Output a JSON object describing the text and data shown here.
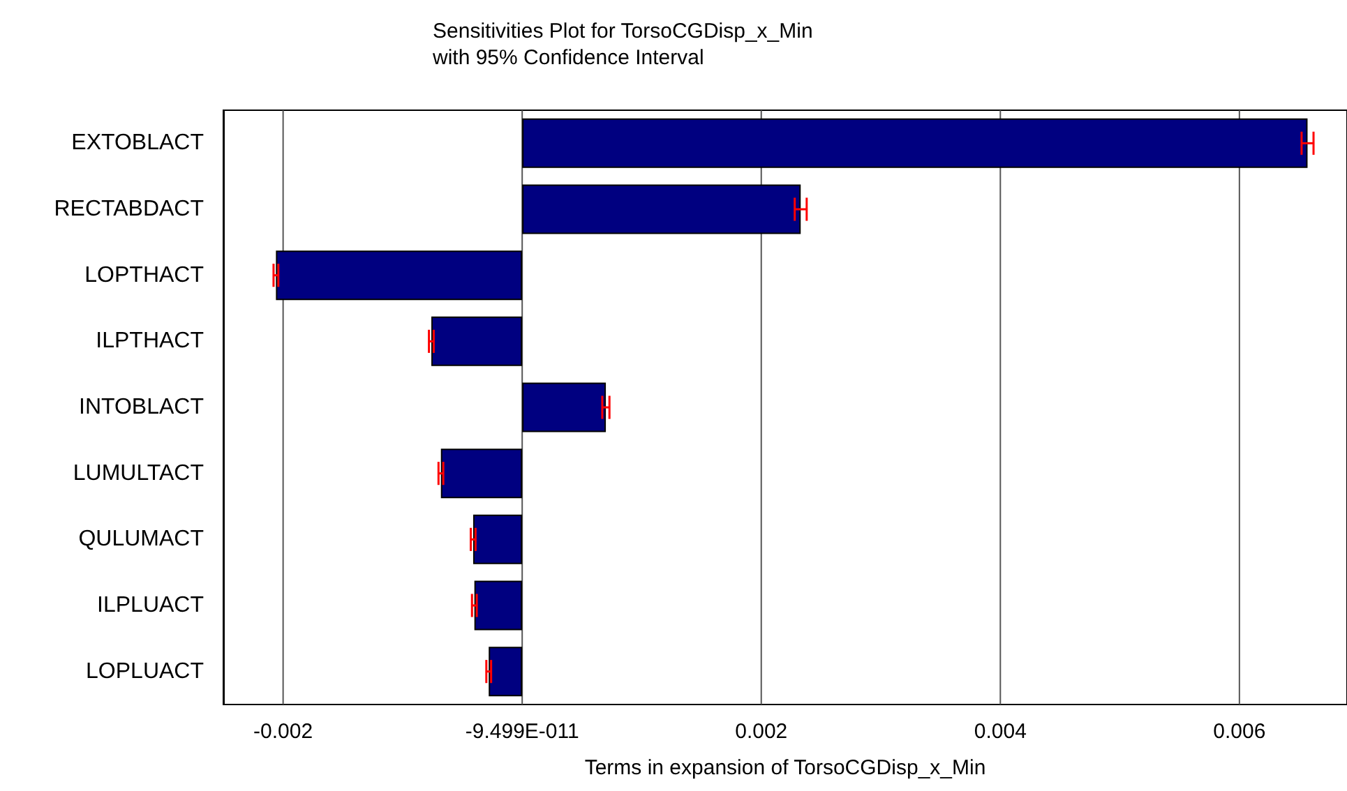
{
  "chart_data": {
    "type": "bar",
    "orientation": "horizontal",
    "title": "Sensitivities Plot for TorsoCGDisp_x_Min",
    "subtitle": "with 95% Confidence Interval",
    "xlabel": "Terms in expansion of TorsoCGDisp_x_Min",
    "categories": [
      "EXTOBLACT",
      "RECTABDACT",
      "LOPTHACT",
      "ILPTHACT",
      "INTOBLACT",
      "LUMULTACT",
      "QULUMACT",
      "ILPLUACT",
      "LOPLUACT"
    ],
    "values": [
      0.00657,
      0.00233,
      -0.00206,
      -0.00076,
      0.0007,
      -0.00068,
      -0.00041,
      -0.0004,
      -0.00028
    ],
    "errors": [
      5e-05,
      5e-05,
      2e-05,
      2e-05,
      3e-05,
      2e-05,
      2e-05,
      2e-05,
      2e-05
    ],
    "color": "#000080",
    "xlim": [
      -0.0025,
      0.0069
    ],
    "xticks": [
      -0.002,
      {
        "value": -9.499e-11,
        "label": "-9.499E-011"
      },
      0.002,
      0.004,
      0.006
    ],
    "grid": "x"
  }
}
